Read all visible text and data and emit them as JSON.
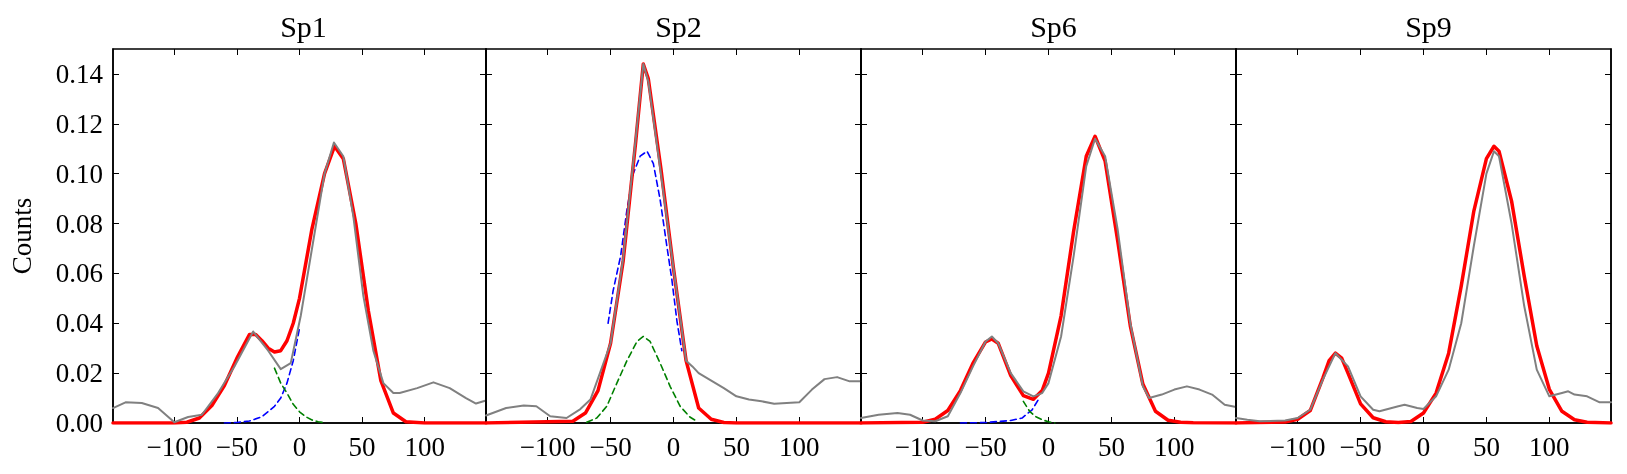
{
  "chart_data": [
    {
      "type": "line",
      "title": "Sp1",
      "ylabel": "Counts",
      "xlim": [
        -149,
        149
      ],
      "ylim": [
        0,
        0.15
      ],
      "xticks": [
        -100,
        -50,
        0,
        50,
        100
      ],
      "yticks": [
        {
          "value": 0,
          "label": "0.00"
        },
        {
          "value": 0.02,
          "label": "0.02"
        },
        {
          "value": 0.04,
          "label": "0.04"
        },
        {
          "value": 0.06,
          "label": "0.06"
        },
        {
          "value": 0.08,
          "label": "0.08"
        },
        {
          "value": 0.1,
          "label": "0.10"
        },
        {
          "value": 0.12,
          "label": "0.12"
        },
        {
          "value": 0.14,
          "label": "0.14"
        }
      ],
      "grid": false,
      "marker": "none",
      "line_style": "solid",
      "series": [
        {
          "color": "#0000ff",
          "line_style": "dashed",
          "x": [
            -60,
            -50,
            -40,
            -30,
            -20,
            -15,
            -10,
            -5,
            0
          ],
          "values": [
            0,
            0.0002,
            0.0008,
            0.0025,
            0.0067,
            0.01,
            0.016,
            0.025,
            0.038
          ]
        },
        {
          "color": "#008000",
          "line_style": "dashed",
          "x": [
            -20,
            -15,
            -10,
            -5,
            0,
            5,
            10,
            15,
            20
          ],
          "values": [
            0.022,
            0.016,
            0.012,
            0.0075,
            0.0045,
            0.0025,
            0.0012,
            0.0005,
            0.0001
          ]
        },
        {
          "color": "#ff0000",
          "x": [
            -149,
            -100,
            -90,
            -80,
            -70,
            -60,
            -50,
            -40,
            -35,
            -30,
            -25,
            -20,
            -15,
            -10,
            -5,
            0,
            10,
            20,
            28,
            35,
            45,
            55,
            65,
            75,
            85,
            100,
            149
          ],
          "values": [
            0,
            0,
            0.0003,
            0.002,
            0.007,
            0.015,
            0.026,
            0.0355,
            0.0355,
            0.033,
            0.03,
            0.0285,
            0.029,
            0.033,
            0.04,
            0.05,
            0.078,
            0.1,
            0.111,
            0.106,
            0.08,
            0.045,
            0.017,
            0.004,
            0.0005,
            0,
            0
          ]
        },
        {
          "color": "#808080",
          "x": [
            -149,
            -139,
            -126,
            -113,
            -100,
            -89,
            -78,
            -65,
            -52,
            -37,
            -25,
            -15,
            -7,
            1,
            12,
            20,
            27.5,
            35,
            43,
            51,
            59,
            67,
            75,
            80,
            94,
            107,
            120,
            133,
            141,
            149
          ],
          "values": [
            0.006,
            0.0083,
            0.008,
            0.006,
            0.0003,
            0.0024,
            0.0033,
            0.012,
            0.0227,
            0.0367,
            0.029,
            0.0216,
            0.024,
            0.043,
            0.076,
            0.1,
            0.1125,
            0.107,
            0.083,
            0.051,
            0.029,
            0.016,
            0.012,
            0.012,
            0.014,
            0.0163,
            0.014,
            0.01,
            0.0078,
            0.009
          ]
        }
      ]
    },
    {
      "type": "line",
      "title": "Sp2",
      "xlim": [
        -149,
        149
      ],
      "ylim": [
        0,
        0.15
      ],
      "xticks": [
        -100,
        -50,
        0,
        50,
        100
      ],
      "yticks": [
        0,
        0.02,
        0.04,
        0.06,
        0.08,
        0.1,
        0.12,
        0.14
      ],
      "tick_labels": "x",
      "grid": false,
      "marker": "none",
      "line_style": "solid",
      "series": [
        {
          "color": "#0000ff",
          "line_style": "dashed",
          "x": [
            -52,
            -48,
            -42,
            -37,
            -32,
            -26.5,
            -21,
            -16,
            -10.6,
            -5.3,
            -1.3,
            2.7,
            6.6
          ],
          "values": [
            0.04,
            0.053,
            0.067,
            0.0855,
            0.1,
            0.107,
            0.109,
            0.104,
            0.0895,
            0.071,
            0.0575,
            0.041,
            0.029
          ]
        },
        {
          "color": "#008000",
          "line_style": "dashed",
          "x": [
            -69,
            -61,
            -53,
            -45,
            -37,
            -29,
            -24,
            -18.6,
            -10.6,
            -2.7,
            5.3,
            13,
            18.6
          ],
          "values": [
            0.0003,
            0.002,
            0.0067,
            0.016,
            0.025,
            0.0327,
            0.0347,
            0.0327,
            0.024,
            0.0147,
            0.0067,
            0.0024,
            0.0007
          ]
        },
        {
          "color": "#ff0000",
          "x": [
            -149,
            -80,
            -70,
            -60,
            -50,
            -40,
            -30,
            -24,
            -20,
            -10,
            0,
            10,
            20,
            30,
            40,
            50,
            149
          ],
          "values": [
            0,
            0.0007,
            0.004,
            0.013,
            0.032,
            0.065,
            0.113,
            0.144,
            0.138,
            0.102,
            0.062,
            0.025,
            0.006,
            0.0015,
            0.0002,
            0,
            0
          ]
        },
        {
          "color": "#808080",
          "x": [
            -149,
            -133,
            -119,
            -109,
            -98,
            -85,
            -74,
            -66,
            -50,
            -40,
            -30,
            -24,
            -20,
            -10,
            0,
            10,
            15,
            20,
            30,
            40,
            50,
            60,
            70,
            80,
            90,
            100,
            110,
            120,
            130,
            140,
            149
          ],
          "values": [
            0.003,
            0.006,
            0.007,
            0.0067,
            0.0027,
            0.002,
            0.0056,
            0.0094,
            0.032,
            0.066,
            0.114,
            0.144,
            0.137,
            0.1,
            0.062,
            0.025,
            0.0227,
            0.02,
            0.017,
            0.014,
            0.0107,
            0.0094,
            0.0087,
            0.0077,
            0.008,
            0.0083,
            0.0134,
            0.0176,
            0.0184,
            0.0167,
            0.0167
          ]
        }
      ]
    },
    {
      "type": "line",
      "title": "Sp6",
      "xlim": [
        -149,
        149
      ],
      "ylim": [
        0,
        0.15
      ],
      "xticks": [
        -100,
        -50,
        0,
        50,
        100
      ],
      "yticks": [
        0,
        0.02,
        0.04,
        0.06,
        0.08,
        0.1,
        0.12,
        0.14
      ],
      "tick_labels": "x",
      "grid": false,
      "marker": "none",
      "line_style": "solid",
      "series": [
        {
          "color": "#0000ff",
          "line_style": "dashed",
          "x": [
            -70,
            -50,
            -30,
            -21,
            -13,
            -8
          ],
          "values": [
            0,
            0.0002,
            0.001,
            0.002,
            0.0053,
            0.0094
          ]
        },
        {
          "color": "#008000",
          "line_style": "dashed",
          "x": [
            -20,
            -15,
            -10,
            -5,
            0,
            5
          ],
          "values": [
            0.0087,
            0.0047,
            0.0025,
            0.0013,
            0.0005,
            0
          ]
        },
        {
          "color": "#ff0000",
          "x": [
            -149,
            -100,
            -90,
            -80,
            -70,
            -60,
            -50,
            -45,
            -40,
            -30,
            -20,
            -12,
            -5,
            0,
            10,
            20,
            30,
            37,
            45,
            55,
            65,
            75,
            85,
            95,
            105,
            115,
            149
          ],
          "values": [
            0,
            0.0003,
            0.0015,
            0.005,
            0.013,
            0.024,
            0.0325,
            0.0337,
            0.032,
            0.019,
            0.011,
            0.0095,
            0.013,
            0.02,
            0.043,
            0.077,
            0.107,
            0.115,
            0.105,
            0.073,
            0.039,
            0.0156,
            0.0047,
            0.0011,
            0.0003,
            0.0001,
            0
          ]
        },
        {
          "color": "#808080",
          "x": [
            -149,
            -135,
            -120,
            -110,
            -100,
            -90,
            -80,
            -70,
            -60,
            -50,
            -45,
            -40,
            -30,
            -20,
            -12,
            -5,
            0,
            10,
            20,
            30,
            37,
            45,
            55,
            65,
            75,
            80,
            90,
            100,
            110,
            120,
            130,
            140,
            149
          ],
          "values": [
            0.002,
            0.0033,
            0.004,
            0.0033,
            0.001,
            0.0007,
            0.0027,
            0.012,
            0.0227,
            0.0327,
            0.0347,
            0.032,
            0.02,
            0.0127,
            0.0107,
            0.012,
            0.016,
            0.0347,
            0.067,
            0.103,
            0.114,
            0.107,
            0.0775,
            0.04,
            0.0147,
            0.01,
            0.0114,
            0.0134,
            0.0147,
            0.0134,
            0.0114,
            0.0073,
            0.0064
          ]
        }
      ]
    },
    {
      "type": "line",
      "title": "Sp9",
      "xlim": [
        -149,
        149
      ],
      "ylim": [
        0,
        0.15
      ],
      "xticks": [
        -100,
        -50,
        0,
        50,
        100
      ],
      "yticks": [
        0,
        0.02,
        0.04,
        0.06,
        0.08,
        0.1,
        0.12,
        0.14
      ],
      "tick_labels": "x",
      "grid": false,
      "marker": "none",
      "line_style": "solid",
      "series": [
        {
          "color": "#ff0000",
          "x": [
            -149,
            -110,
            -100,
            -90,
            -80,
            -75,
            -70,
            -65,
            -60,
            -50,
            -40,
            -30,
            -20,
            -10,
            0,
            10,
            20,
            30,
            40,
            50,
            56,
            60,
            70,
            80,
            90,
            100,
            110,
            120,
            130,
            149
          ],
          "values": [
            0,
            0.0004,
            0.0015,
            0.005,
            0.018,
            0.025,
            0.028,
            0.026,
            0.02,
            0.0077,
            0.0021,
            0.0005,
            0.0002,
            0.0006,
            0.004,
            0.012,
            0.028,
            0.055,
            0.085,
            0.106,
            0.111,
            0.109,
            0.089,
            0.059,
            0.031,
            0.0135,
            0.0047,
            0.0013,
            0.0003,
            0
          ]
        },
        {
          "color": "#808080",
          "x": [
            -149,
            -140,
            -130,
            -110,
            -100,
            -90,
            -80,
            -70,
            -60,
            -50,
            -40,
            -35,
            -20,
            -15,
            -5,
            0,
            10,
            20,
            30,
            40,
            50,
            56,
            60,
            70,
            80,
            90,
            100,
            110,
            115,
            120,
            130,
            140,
            149
          ],
          "values": [
            0.002,
            0.0013,
            0.0007,
            0.001,
            0.002,
            0.0053,
            0.0174,
            0.028,
            0.0227,
            0.0107,
            0.0053,
            0.0047,
            0.0067,
            0.0073,
            0.006,
            0.0056,
            0.0107,
            0.0214,
            0.04,
            0.071,
            0.1,
            0.109,
            0.107,
            0.08,
            0.047,
            0.0214,
            0.0107,
            0.012,
            0.0127,
            0.0114,
            0.0107,
            0.0083,
            0.0083
          ]
        }
      ]
    }
  ]
}
